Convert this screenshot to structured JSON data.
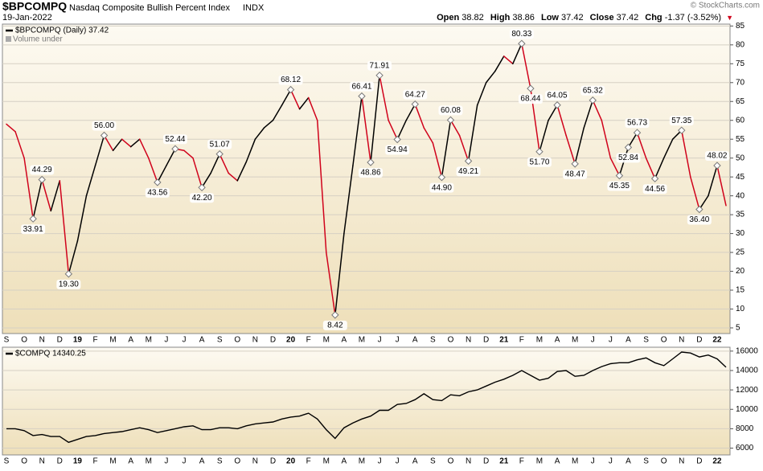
{
  "header": {
    "symbol": "$BPCOMPQ",
    "name": "Nasdaq Composite Bullish Percent Index",
    "exchange": "INDX",
    "date": "19-Jan-2022",
    "copyright": "© StockCharts.com",
    "quote": [
      {
        "label": "Open",
        "value": 38.82
      },
      {
        "label": "High",
        "value": 38.86
      },
      {
        "label": "Low",
        "value": 37.42
      },
      {
        "label": "Close",
        "value": 37.42
      },
      {
        "label": "Chg",
        "value": "-1.37 (-3.52%)"
      }
    ]
  },
  "chart_data": [
    {
      "type": "line",
      "note": "Volume under",
      "categories": [
        "S",
        null,
        "O",
        null,
        "N",
        null,
        "D",
        null,
        "19",
        null,
        "F",
        null,
        "M",
        null,
        "A",
        null,
        "M",
        null,
        "J",
        null,
        "J",
        null,
        "A",
        null,
        "S",
        null,
        "O",
        null,
        "N",
        null,
        "D",
        null,
        "20",
        null,
        "F",
        null,
        "M",
        null,
        "A",
        null,
        "M",
        null,
        "J",
        null,
        "J",
        null,
        "A",
        null,
        "S",
        null,
        "O",
        null,
        "N",
        null,
        "D",
        null,
        "21",
        null,
        "F",
        null,
        "M",
        null,
        "A",
        null,
        "M",
        null,
        "J",
        null,
        "J",
        null,
        "A",
        null,
        "S",
        null,
        "O",
        null,
        "N",
        null,
        "D",
        null,
        "22",
        null
      ],
      "up_color": "#000000",
      "down_color": "#d0021b",
      "series": [
        {
          "name": "$BPCOMPQ (Daily) 37.42",
          "color": "#000000",
          "values": [
            59,
            57,
            50,
            33.91,
            44.29,
            36,
            44,
            19.3,
            28,
            40,
            48,
            56.0,
            52,
            55,
            53,
            55,
            50,
            43.56,
            48,
            52.44,
            52,
            50,
            42.2,
            46,
            51.07,
            46,
            44,
            49,
            55,
            58,
            60,
            64,
            68.12,
            63,
            66,
            60,
            25,
            8.42,
            30,
            48,
            66.41,
            48.86,
            71.91,
            60,
            54.94,
            60,
            64.27,
            58,
            54,
            44.9,
            60.08,
            56,
            49.21,
            64,
            70,
            73,
            77,
            75,
            80.33,
            68.44,
            51.7,
            60,
            64.05,
            56,
            48.47,
            58,
            65.32,
            60,
            50,
            45.35,
            52.84,
            56.73,
            50,
            44.56,
            50,
            55,
            57.35,
            45,
            36.4,
            40,
            48.02,
            37.42
          ],
          "value_labels": [
            null,
            null,
            null,
            "33.91",
            "44.29",
            null,
            null,
            "19.30",
            null,
            null,
            null,
            "56.00",
            null,
            null,
            null,
            null,
            null,
            "43.56",
            null,
            "52.44",
            null,
            null,
            "42.20",
            null,
            "51.07",
            null,
            null,
            null,
            null,
            null,
            null,
            null,
            "68.12",
            null,
            null,
            null,
            null,
            "8.42",
            null,
            null,
            "66.41",
            "48.86",
            "71.91",
            null,
            "54.94",
            null,
            "64.27",
            null,
            null,
            "44.90",
            "60.08",
            null,
            "49.21",
            null,
            null,
            null,
            null,
            null,
            "80.33",
            "68.44",
            "51.70",
            null,
            "64.05",
            null,
            "48.47",
            null,
            "65.32",
            null,
            null,
            "45.35",
            "52.84",
            "56.73",
            null,
            "44.56",
            null,
            null,
            "57.35",
            null,
            "36.40",
            null,
            "48.02",
            null
          ]
        }
      ],
      "ylim": [
        3.5,
        85.5
      ],
      "yticks": [
        5,
        10,
        15,
        20,
        25,
        30,
        35,
        40,
        45,
        50,
        55,
        60,
        65,
        70,
        75,
        80,
        85
      ],
      "grid": true
    },
    {
      "type": "line",
      "categories": [
        "S",
        null,
        "O",
        null,
        "N",
        null,
        "D",
        null,
        "19",
        null,
        "F",
        null,
        "M",
        null,
        "A",
        null,
        "M",
        null,
        "J",
        null,
        "J",
        null,
        "A",
        null,
        "S",
        null,
        "O",
        null,
        "N",
        null,
        "D",
        null,
        "20",
        null,
        "F",
        null,
        "M",
        null,
        "A",
        null,
        "M",
        null,
        "J",
        null,
        "J",
        null,
        "A",
        null,
        "S",
        null,
        "O",
        null,
        "N",
        null,
        "D",
        null,
        "21",
        null,
        "F",
        null,
        "M",
        null,
        "A",
        null,
        "M",
        null,
        "J",
        null,
        "J",
        null,
        "A",
        null,
        "S",
        null,
        "O",
        null,
        "N",
        null,
        "D",
        null,
        "22",
        null
      ],
      "series": [
        {
          "name": "$COMPQ 14340.25",
          "color": "#000000",
          "values": [
            8000,
            8000,
            7800,
            7300,
            7400,
            7200,
            7200,
            6600,
            6900,
            7200,
            7300,
            7500,
            7600,
            7700,
            7900,
            8100,
            7900,
            7600,
            7800,
            8000,
            8200,
            8300,
            7900,
            7900,
            8100,
            8100,
            8000,
            8300,
            8500,
            8600,
            8700,
            9000,
            9200,
            9300,
            9600,
            9000,
            7900,
            7000,
            8100,
            8600,
            9000,
            9300,
            9900,
            9900,
            10500,
            10600,
            11000,
            11600,
            11000,
            10900,
            11500,
            11400,
            11800,
            12000,
            12400,
            12800,
            13100,
            13500,
            14000,
            13500,
            13000,
            13200,
            13900,
            14000,
            13400,
            13500,
            14000,
            14400,
            14700,
            14800,
            14800,
            15100,
            15300,
            14800,
            14500,
            15200,
            15900,
            15800,
            15400,
            15600,
            15200,
            14340.25
          ]
        }
      ],
      "ylim": [
        5300,
        16400
      ],
      "yticks": [
        6000,
        8000,
        10000,
        12000,
        14000,
        16000
      ],
      "grid": true
    }
  ]
}
